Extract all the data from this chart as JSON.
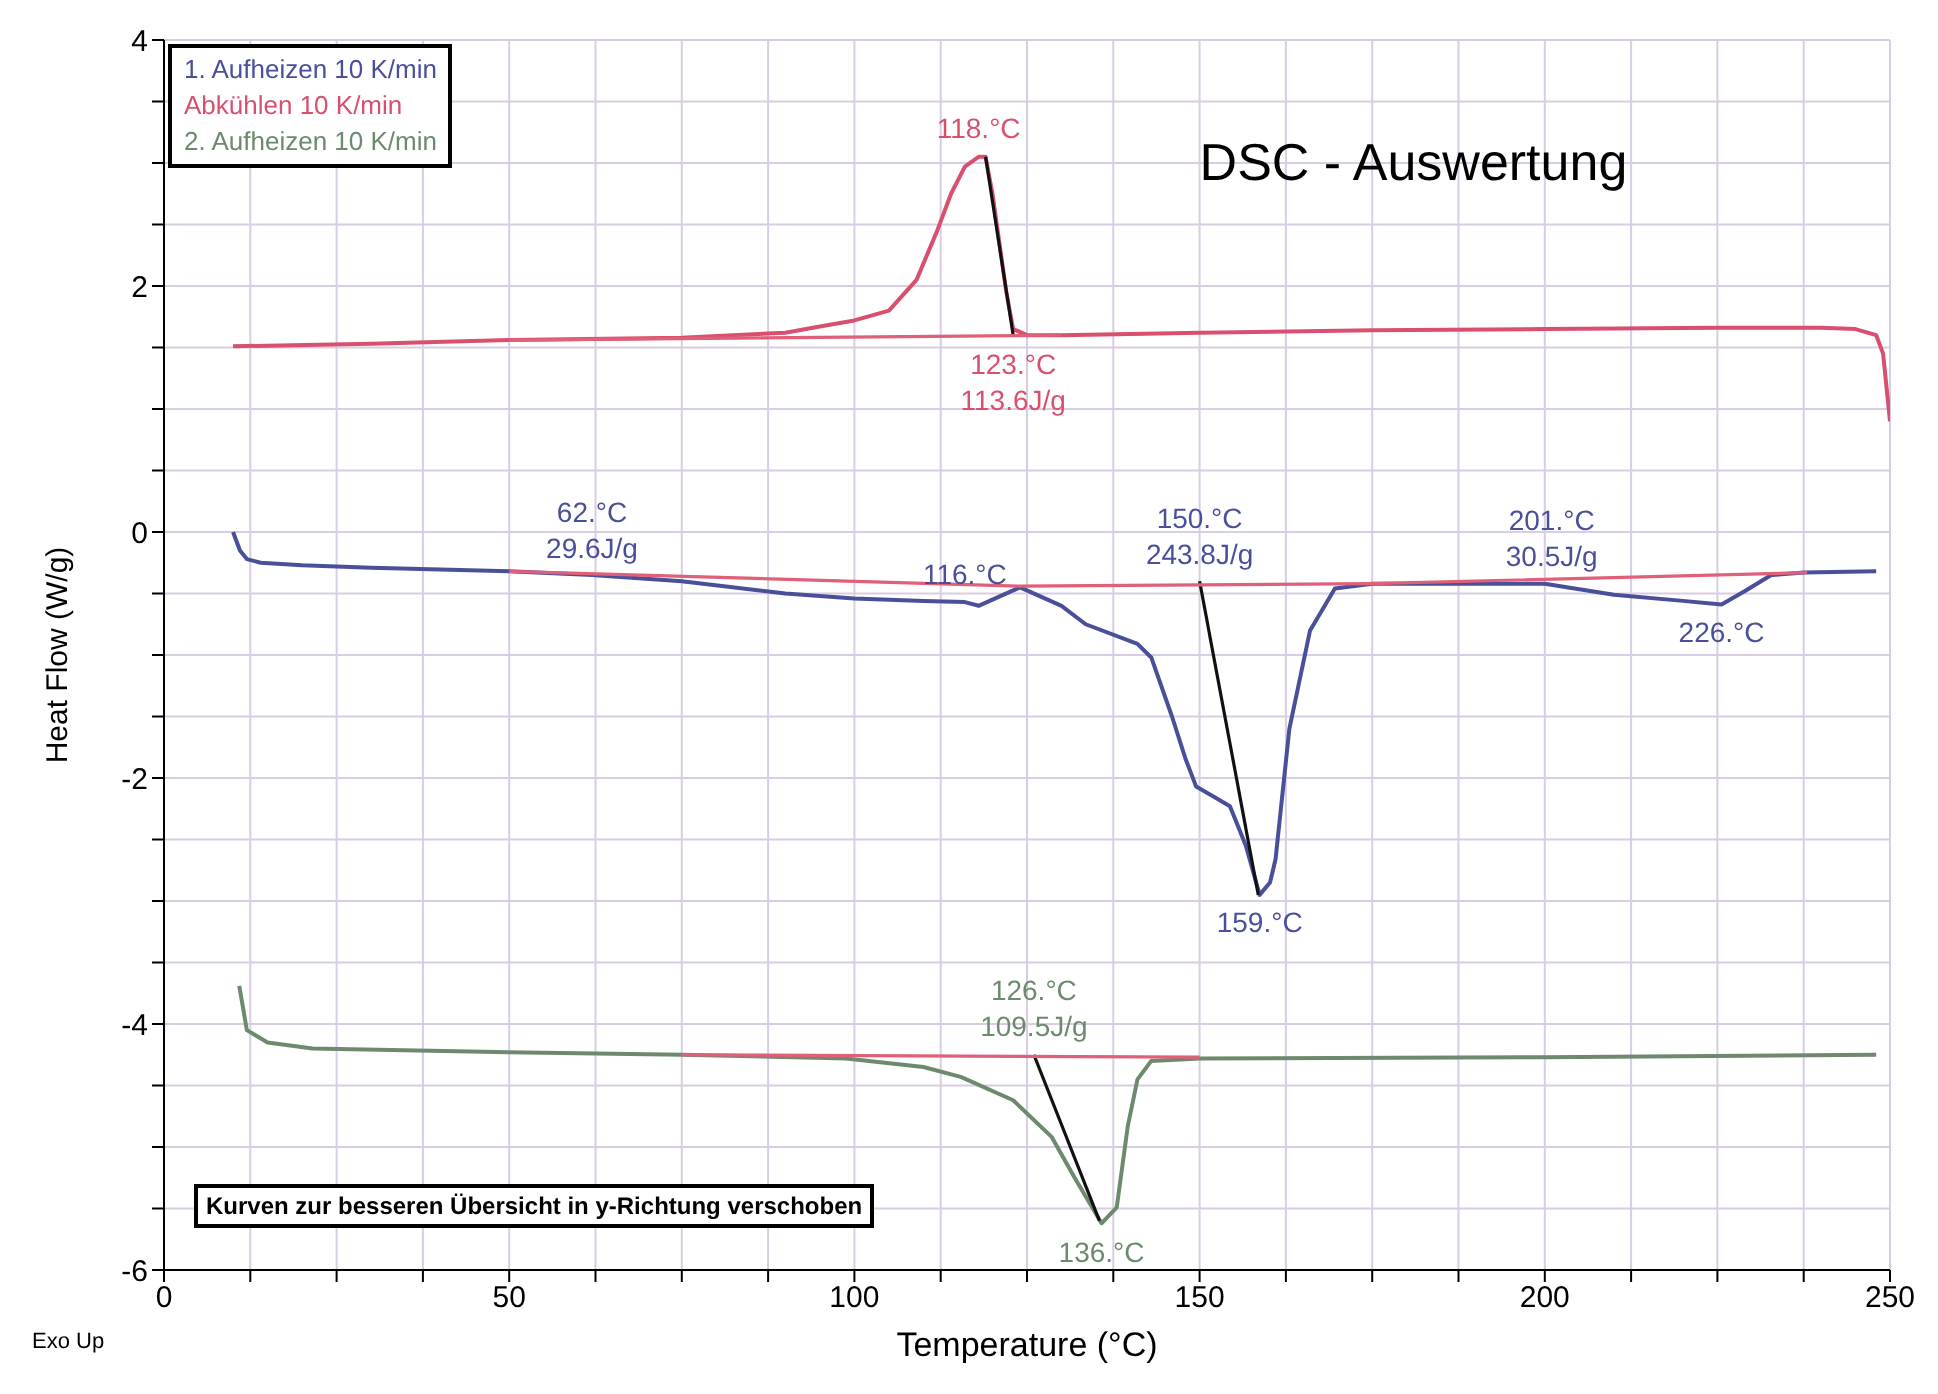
{
  "chart_data": {
    "type": "line",
    "title": "DSC - Auswertung",
    "xlabel": "Temperature (°C)",
    "ylabel": "Heat Flow (W/g)",
    "xlim": [
      0,
      250
    ],
    "xticks": [
      0,
      {
        "value": 12.5,
        "label": null
      },
      {
        "value": 25,
        "label": null
      },
      {
        "value": 37.5,
        "label": null
      },
      50,
      {
        "value": 62.5,
        "label": null
      },
      {
        "value": 75,
        "label": null
      },
      {
        "value": 87.5,
        "label": null
      },
      100,
      {
        "value": 112.5,
        "label": null
      },
      {
        "value": 125,
        "label": null
      },
      {
        "value": 137.5,
        "label": null
      },
      150,
      {
        "value": 162.5,
        "label": null
      },
      {
        "value": 175,
        "label": null
      },
      {
        "value": 187.5,
        "label": null
      },
      200,
      {
        "value": 212.5,
        "label": null
      },
      {
        "value": 225,
        "label": null
      },
      {
        "value": 237.5,
        "label": null
      },
      250
    ],
    "ylim": [
      -6,
      4
    ],
    "yticks": [
      -6,
      {
        "value": -5.5,
        "label": null
      },
      {
        "value": -5,
        "label": null
      },
      {
        "value": -4.5,
        "label": null
      },
      -4,
      {
        "value": -3.5,
        "label": null
      },
      {
        "value": -3,
        "label": null
      },
      {
        "value": -2.5,
        "label": null
      },
      -2,
      {
        "value": -1.5,
        "label": null
      },
      {
        "value": -1,
        "label": null
      },
      {
        "value": -0.5,
        "label": null
      },
      0,
      {
        "value": 0.5,
        "label": null
      },
      {
        "value": 1,
        "label": null
      },
      {
        "value": 1.5,
        "label": null
      },
      2,
      {
        "value": 2.5,
        "label": null
      },
      {
        "value": 3,
        "label": null
      },
      {
        "value": 3.5,
        "label": null
      },
      4
    ],
    "grid": true,
    "legend": "top left",
    "marker": "none",
    "line_style": "solid",
    "series": [
      {
        "name": "1. Aufheizen 10 K/min",
        "color": "#4a4f9a",
        "x": [
          10,
          11,
          12,
          14,
          20,
          30,
          50,
          62,
          75,
          90,
          100,
          110,
          116,
          118,
          120,
          124,
          130,
          133.5,
          141,
          143,
          146,
          148,
          149.5,
          152,
          154.4,
          156.7,
          158.7,
          160.2,
          161,
          163,
          166,
          169.6,
          175,
          190,
          200,
          210,
          220,
          225.6,
          229,
          232.8,
          237.6,
          248
        ],
        "values": [
          0,
          -0.15,
          -0.22,
          -0.25,
          -0.27,
          -0.29,
          -0.32,
          -0.35,
          -0.4,
          -0.5,
          -0.54,
          -0.56,
          -0.57,
          -0.6,
          -0.55,
          -0.45,
          -0.6,
          -0.75,
          -0.91,
          -1.02,
          -1.5,
          -1.85,
          -2.07,
          -2.15,
          -2.23,
          -2.55,
          -2.95,
          -2.85,
          -2.66,
          -1.6,
          -0.8,
          -0.46,
          -0.42,
          -0.42,
          -0.42,
          -0.51,
          -0.56,
          -0.59,
          -0.48,
          -0.35,
          -0.33,
          -0.32
        ]
      },
      {
        "name": "Abkühlen 10 K/min",
        "color": "#d9506e",
        "x": [
          10,
          30,
          50,
          75,
          90,
          95,
          100,
          105,
          109,
          112,
          114,
          116,
          118,
          119,
          120,
          121,
          122,
          123,
          125,
          130,
          150,
          175,
          200,
          225,
          240,
          245,
          248,
          249,
          250
        ],
        "values": [
          1.51,
          1.53,
          1.56,
          1.58,
          1.62,
          1.67,
          1.72,
          1.8,
          2.05,
          2.45,
          2.75,
          2.97,
          3.05,
          3.05,
          2.75,
          2.35,
          1.95,
          1.65,
          1.6,
          1.6,
          1.62,
          1.64,
          1.65,
          1.66,
          1.66,
          1.65,
          1.6,
          1.45,
          0.9
        ]
      },
      {
        "name": "2. Aufheizen 10 K/min",
        "color": "#6e8a6e",
        "x": [
          10.9,
          12,
          15,
          21.5,
          50,
          75,
          98.8,
          110,
          115.4,
          123,
          128.6,
          131.9,
          135.8,
          138,
          139.6,
          141,
          143,
          150,
          200,
          248
        ],
        "values": [
          -3.69,
          -4.05,
          -4.15,
          -4.2,
          -4.23,
          -4.25,
          -4.28,
          -4.35,
          -4.43,
          -4.62,
          -4.92,
          -5.25,
          -5.62,
          -5.49,
          -4.83,
          -4.45,
          -4.3,
          -4.28,
          -4.27,
          -4.25
        ]
      },
      {
        "color": "#111111",
        "x": [
          119,
          123
        ],
        "values": [
          3.05,
          1.6
        ]
      },
      {
        "color": "#111111",
        "x": [
          150,
          158.5
        ],
        "values": [
          -0.4,
          -2.95
        ]
      },
      {
        "color": "#111111",
        "x": [
          126,
          135.5
        ],
        "values": [
          -4.25,
          -5.6
        ]
      },
      {
        "color": "#e0607a",
        "x": [
          50,
          130
        ],
        "values": [
          1.56,
          1.6
        ]
      },
      {
        "color": "#e0607a",
        "x": [
          50,
          124,
          175,
          238
        ],
        "values": [
          -0.32,
          -0.44,
          -0.42,
          -0.33
        ]
      },
      {
        "color": "#e0607a",
        "x": [
          75,
          150
        ],
        "values": [
          -4.25,
          -4.27
        ]
      }
    ],
    "annotations": [
      "Kurven zur besseren Übersicht in y-Richtung verschoben",
      "Exo Up",
      {
        "text": "118.°C",
        "x": 118,
        "y": 3.05
      },
      {
        "text": "123.°C",
        "x": 123,
        "y": 1.6
      },
      {
        "text": "113.6J/g",
        "x": 123,
        "y": 1.6
      },
      {
        "text": "62.°C",
        "x": 62,
        "y": -0.35
      },
      {
        "text": "29.6J/g",
        "x": 62,
        "y": -0.35
      },
      {
        "text": "116.°C",
        "x": 116,
        "y": -0.57
      },
      {
        "text": "150.°C",
        "x": 150,
        "y": -0.4
      },
      {
        "text": "243.8J/g",
        "x": 150,
        "y": -0.4
      },
      {
        "text": "159.°C",
        "x": 158.7,
        "y": -2.95
      },
      {
        "text": "201.°C",
        "x": 201,
        "y": -0.43
      },
      {
        "text": "30.5J/g",
        "x": 201,
        "y": -0.43
      },
      {
        "text": "226.°C",
        "x": 225.6,
        "y": -0.59
      },
      {
        "text": "126.°C",
        "x": 126,
        "y": -4.25
      },
      {
        "text": "109.5J/g",
        "x": 126,
        "y": -4.25
      },
      {
        "text": "136.°C",
        "x": 135.8,
        "y": -5.62
      }
    ]
  }
}
